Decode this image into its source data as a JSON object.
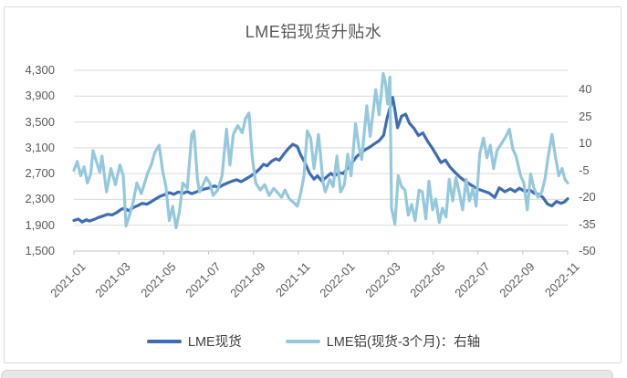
{
  "chart_data": {
    "type": "line",
    "title": "LME铝现货升贴水",
    "grid": "horizontal",
    "x_range": [
      0,
      22
    ],
    "x_tick_labels": [
      "2021-01",
      "2021-03",
      "2021-05",
      "2021-07",
      "2021-09",
      "2021-11",
      "2022-01",
      "2022-03",
      "2022-05",
      "2022-07",
      "2022-09",
      "2022-11"
    ],
    "left_axis": {
      "ylim": [
        1500,
        4300
      ],
      "tick_values": [
        4300,
        3900,
        3500,
        3100,
        2700,
        2300,
        1900,
        1500
      ],
      "tick_labels": [
        "4,300",
        "3,900",
        "3,500",
        "3,100",
        "2,700",
        "2,300",
        "1,900",
        "1,500"
      ]
    },
    "right_axis": {
      "ylim": [
        -50,
        50.8
      ],
      "tick_values": [
        40,
        25,
        10,
        -5,
        -20,
        -35,
        -50
      ],
      "tick_labels": [
        "40",
        "25",
        "10",
        "-5",
        "-20",
        "-35",
        "-50"
      ]
    },
    "legend": {
      "position": "bottom"
    },
    "colors": {
      "spot": "#3e6db0",
      "premium": "#95c8dc",
      "grid": "#d9d9d9",
      "axis": "#c2c2c2",
      "text": "#595959"
    },
    "series": [
      {
        "name": "LME现货",
        "axis": "left",
        "color": "#3e6db0",
        "points": [
          [
            0,
            1975
          ],
          [
            0.2,
            1995
          ],
          [
            0.37,
            1950
          ],
          [
            0.55,
            1985
          ],
          [
            0.7,
            1965
          ],
          [
            0.9,
            1990
          ],
          [
            1.1,
            2020
          ],
          [
            1.3,
            2045
          ],
          [
            1.5,
            2070
          ],
          [
            1.7,
            2060
          ],
          [
            1.9,
            2095
          ],
          [
            2.1,
            2145
          ],
          [
            2.25,
            2165
          ],
          [
            2.45,
            2125
          ],
          [
            2.65,
            2175
          ],
          [
            2.85,
            2205
          ],
          [
            3.05,
            2240
          ],
          [
            3.25,
            2225
          ],
          [
            3.45,
            2265
          ],
          [
            3.65,
            2310
          ],
          [
            3.85,
            2350
          ],
          [
            4.05,
            2375
          ],
          [
            4.25,
            2405
          ],
          [
            4.45,
            2380
          ],
          [
            4.65,
            2415
          ],
          [
            4.85,
            2395
          ],
          [
            5.05,
            2420
          ],
          [
            5.25,
            2390
          ],
          [
            5.45,
            2415
          ],
          [
            5.65,
            2445
          ],
          [
            5.85,
            2465
          ],
          [
            6.05,
            2480
          ],
          [
            6.25,
            2510
          ],
          [
            6.45,
            2485
          ],
          [
            6.65,
            2525
          ],
          [
            6.85,
            2555
          ],
          [
            7.05,
            2585
          ],
          [
            7.25,
            2605
          ],
          [
            7.45,
            2575
          ],
          [
            7.65,
            2615
          ],
          [
            7.85,
            2655
          ],
          [
            8.05,
            2705
          ],
          [
            8.25,
            2765
          ],
          [
            8.45,
            2845
          ],
          [
            8.6,
            2820
          ],
          [
            8.8,
            2890
          ],
          [
            9,
            2930
          ],
          [
            9.15,
            2905
          ],
          [
            9.35,
            3000
          ],
          [
            9.55,
            3085
          ],
          [
            9.75,
            3155
          ],
          [
            9.95,
            3120
          ],
          [
            10.1,
            2990
          ],
          [
            10.3,
            2865
          ],
          [
            10.5,
            2705
          ],
          [
            10.7,
            2615
          ],
          [
            10.85,
            2665
          ],
          [
            11.05,
            2585
          ],
          [
            11.25,
            2645
          ],
          [
            11.45,
            2705
          ],
          [
            11.6,
            2660
          ],
          [
            11.8,
            2715
          ],
          [
            12,
            2700
          ],
          [
            12.2,
            2790
          ],
          [
            12.4,
            2870
          ],
          [
            12.6,
            2965
          ],
          [
            12.8,
            3025
          ],
          [
            13,
            3075
          ],
          [
            13.2,
            3115
          ],
          [
            13.4,
            3165
          ],
          [
            13.6,
            3210
          ],
          [
            13.8,
            3295
          ],
          [
            13.95,
            3550
          ],
          [
            14.1,
            3740
          ],
          [
            14.2,
            3880
          ],
          [
            14.3,
            3690
          ],
          [
            14.42,
            3410
          ],
          [
            14.6,
            3590
          ],
          [
            14.78,
            3620
          ],
          [
            14.95,
            3480
          ],
          [
            15.15,
            3400
          ],
          [
            15.35,
            3290
          ],
          [
            15.55,
            3330
          ],
          [
            15.75,
            3205
          ],
          [
            15.95,
            3105
          ],
          [
            16.15,
            2990
          ],
          [
            16.35,
            2870
          ],
          [
            16.55,
            2910
          ],
          [
            16.75,
            2805
          ],
          [
            16.95,
            2730
          ],
          [
            17.2,
            2645
          ],
          [
            17.4,
            2590
          ],
          [
            17.6,
            2545
          ],
          [
            17.85,
            2490
          ],
          [
            18.05,
            2455
          ],
          [
            18.25,
            2430
          ],
          [
            18.5,
            2400
          ],
          [
            18.75,
            2330
          ],
          [
            18.95,
            2480
          ],
          [
            19.2,
            2420
          ],
          [
            19.45,
            2465
          ],
          [
            19.65,
            2420
          ],
          [
            19.85,
            2475
          ],
          [
            20.1,
            2420
          ],
          [
            20.3,
            2450
          ],
          [
            20.5,
            2400
          ],
          [
            20.7,
            2380
          ],
          [
            20.9,
            2330
          ],
          [
            21.1,
            2230
          ],
          [
            21.3,
            2200
          ],
          [
            21.5,
            2270
          ],
          [
            21.7,
            2240
          ],
          [
            21.85,
            2260
          ],
          [
            22,
            2310
          ]
        ]
      },
      {
        "name": "LME铝(现货-3个月)：右轴",
        "axis": "right",
        "color": "#95c8dc",
        "points": [
          [
            0,
            -5
          ],
          [
            0.15,
            0
          ],
          [
            0.3,
            -8
          ],
          [
            0.45,
            -3
          ],
          [
            0.6,
            -12
          ],
          [
            0.75,
            -7
          ],
          [
            0.85,
            6
          ],
          [
            1,
            0
          ],
          [
            1.15,
            -6
          ],
          [
            1.25,
            3
          ],
          [
            1.45,
            -17
          ],
          [
            1.65,
            -4
          ],
          [
            1.85,
            -13
          ],
          [
            2.05,
            -2
          ],
          [
            2.2,
            -8
          ],
          [
            2.32,
            -36
          ],
          [
            2.5,
            -29
          ],
          [
            2.65,
            -22
          ],
          [
            2.8,
            -12
          ],
          [
            3,
            -18
          ],
          [
            3.15,
            -12
          ],
          [
            3.3,
            -6
          ],
          [
            3.45,
            -2
          ],
          [
            3.6,
            5
          ],
          [
            3.8,
            9
          ],
          [
            3.95,
            -5
          ],
          [
            4.1,
            -14
          ],
          [
            4.25,
            -33
          ],
          [
            4.4,
            -25
          ],
          [
            4.55,
            -37
          ],
          [
            4.7,
            -28
          ],
          [
            4.85,
            -12
          ],
          [
            5.05,
            -15
          ],
          [
            5.25,
            15
          ],
          [
            5.35,
            17
          ],
          [
            5.5,
            -10
          ],
          [
            5.6,
            -17
          ],
          [
            5.75,
            -13
          ],
          [
            5.9,
            -9
          ],
          [
            6.05,
            -12
          ],
          [
            6.2,
            -19
          ],
          [
            6.4,
            -16
          ],
          [
            6.6,
            -8
          ],
          [
            6.8,
            18
          ],
          [
            6.95,
            -2
          ],
          [
            7.1,
            15
          ],
          [
            7.3,
            20
          ],
          [
            7.5,
            16
          ],
          [
            7.65,
            24
          ],
          [
            7.8,
            27
          ],
          [
            7.95,
            2
          ],
          [
            8.1,
            -12
          ],
          [
            8.3,
            -16
          ],
          [
            8.5,
            -13
          ],
          [
            8.7,
            -19
          ],
          [
            8.9,
            -15
          ],
          [
            9.05,
            -17
          ],
          [
            9.25,
            -20
          ],
          [
            9.4,
            -16
          ],
          [
            9.6,
            -21
          ],
          [
            9.8,
            -23
          ],
          [
            9.95,
            -25
          ],
          [
            10.1,
            -18
          ],
          [
            10.25,
            -8
          ],
          [
            10.4,
            17
          ],
          [
            10.55,
            13
          ],
          [
            10.7,
            -4
          ],
          [
            10.9,
            15
          ],
          [
            11.1,
            -12
          ],
          [
            11.2,
            -17
          ],
          [
            11.4,
            -10
          ],
          [
            11.55,
            -14
          ],
          [
            11.72,
            3
          ],
          [
            11.88,
            -17
          ],
          [
            12.05,
            -13
          ],
          [
            12.2,
            4
          ],
          [
            12.35,
            -8
          ],
          [
            12.55,
            21
          ],
          [
            12.7,
            8
          ],
          [
            12.82,
            1
          ],
          [
            13.05,
            31
          ],
          [
            13.2,
            14
          ],
          [
            13.45,
            40
          ],
          [
            13.6,
            26
          ],
          [
            13.78,
            49
          ],
          [
            13.88,
            44
          ],
          [
            13.98,
            32
          ],
          [
            14.08,
            47
          ],
          [
            14.15,
            -26
          ],
          [
            14.3,
            -35
          ],
          [
            14.45,
            -8
          ],
          [
            14.6,
            -14
          ],
          [
            14.75,
            -16
          ],
          [
            14.9,
            -30
          ],
          [
            15.05,
            -24
          ],
          [
            15.2,
            -33
          ],
          [
            15.38,
            -16
          ],
          [
            15.52,
            -17
          ],
          [
            15.68,
            -32
          ],
          [
            15.82,
            -11
          ],
          [
            15.98,
            -27
          ],
          [
            16.12,
            -21
          ],
          [
            16.28,
            -34
          ],
          [
            16.42,
            -26
          ],
          [
            16.58,
            -31
          ],
          [
            16.72,
            -10
          ],
          [
            16.88,
            -22
          ],
          [
            17.02,
            -9
          ],
          [
            17.18,
            -18
          ],
          [
            17.32,
            -27
          ],
          [
            17.48,
            -10
          ],
          [
            17.62,
            -22
          ],
          [
            17.78,
            -15
          ],
          [
            17.92,
            -25
          ],
          [
            18.08,
            4
          ],
          [
            18.25,
            13
          ],
          [
            18.4,
            2
          ],
          [
            18.55,
            9
          ],
          [
            18.7,
            -4
          ],
          [
            18.85,
            6
          ],
          [
            19.05,
            10
          ],
          [
            19.25,
            14
          ],
          [
            19.4,
            18
          ],
          [
            19.55,
            7
          ],
          [
            19.7,
            3
          ],
          [
            19.9,
            -8
          ],
          [
            20.05,
            -12
          ],
          [
            20.2,
            -27
          ],
          [
            20.35,
            -7
          ],
          [
            20.5,
            -15
          ],
          [
            20.68,
            -20
          ],
          [
            20.85,
            -17
          ],
          [
            21,
            -9
          ],
          [
            21.12,
            2
          ],
          [
            21.3,
            15
          ],
          [
            21.45,
            3
          ],
          [
            21.6,
            -8
          ],
          [
            21.75,
            -4
          ],
          [
            21.88,
            -10
          ],
          [
            22,
            -12
          ]
        ]
      }
    ]
  }
}
